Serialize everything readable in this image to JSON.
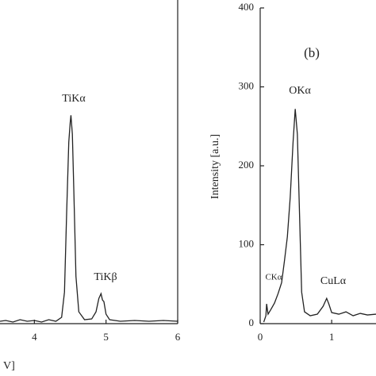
{
  "chart_data": [
    {
      "type": "line",
      "xlabel": "V]",
      "annotations": [
        "TiKα",
        "TiKβ"
      ],
      "x": [
        3.52,
        3.6,
        3.7,
        3.8,
        3.9,
        4.0,
        4.1,
        4.2,
        4.3,
        4.38,
        4.42,
        4.45,
        4.48,
        4.5,
        4.51,
        4.53,
        4.55,
        4.58,
        4.62,
        4.7,
        4.8,
        4.86,
        4.9,
        4.93,
        4.95,
        4.97,
        5.0,
        5.05,
        5.2,
        5.4,
        5.6,
        5.8,
        6.0
      ],
      "series": [
        {
          "color": "#222222",
          "values": [
            3,
            4,
            2,
            5,
            3,
            4,
            2,
            5,
            3,
            8,
            40,
            140,
            230,
            255,
            264,
            240,
            170,
            60,
            15,
            5,
            6,
            15,
            32,
            38,
            30,
            28,
            12,
            5,
            3,
            4,
            3,
            4,
            3
          ]
        }
      ],
      "xlim": [
        3.52,
        6
      ],
      "xticks": [
        4,
        5,
        6
      ],
      "ylim": [
        0,
        400
      ]
    },
    {
      "type": "line",
      "ylabel": "Intensity [a.u.]",
      "annotations": [
        "(b)",
        "OKα",
        "CKα",
        "CuLα"
      ],
      "x": [
        0.05,
        0.08,
        0.09,
        0.11,
        0.15,
        0.2,
        0.25,
        0.3,
        0.34,
        0.38,
        0.42,
        0.46,
        0.49,
        0.52,
        0.55,
        0.58,
        0.62,
        0.7,
        0.8,
        0.88,
        0.93,
        0.96,
        1.0,
        1.1,
        1.2,
        1.3,
        1.4,
        1.5,
        1.62
      ],
      "series": [
        {
          "color": "#222222",
          "values": [
            2,
            10,
            25,
            12,
            18,
            26,
            38,
            52,
            80,
            110,
            160,
            230,
            272,
            240,
            140,
            40,
            15,
            10,
            12,
            22,
            32,
            25,
            14,
            12,
            15,
            10,
            13,
            11,
            12
          ]
        }
      ],
      "xlim": [
        0,
        1.62
      ],
      "xticks": [
        0,
        1
      ],
      "ylim": [
        0,
        400
      ],
      "yticks": [
        0,
        100,
        200,
        300,
        400
      ]
    }
  ]
}
